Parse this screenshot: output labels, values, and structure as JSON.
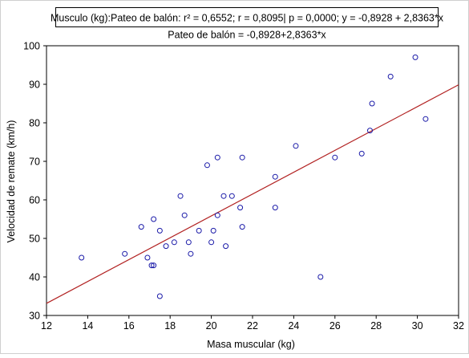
{
  "chart_data": {
    "type": "scatter",
    "title_box": "Musculo (kg):Pateo de balón:  r² = 0,6552;  r = 0,8095| p = 0,0000;  y = -0,8928 + 2,8363*x",
    "subtitle": "Pateo de balón = -0,8928+2,8363*x",
    "xlabel": "Masa muscular (kg)",
    "ylabel": "Velocidad de remate (km/h)",
    "xlim": [
      12,
      32
    ],
    "ylim": [
      30,
      100
    ],
    "xticks": [
      12,
      14,
      16,
      18,
      20,
      22,
      24,
      26,
      28,
      30,
      32
    ],
    "yticks": [
      30,
      40,
      50,
      60,
      70,
      80,
      90,
      100
    ],
    "grid": false,
    "regression": {
      "intercept": -0.8928,
      "slope": 2.8363
    },
    "colors": {
      "points": "#1a1aa8",
      "line": "#b22222",
      "axis": "#000000"
    },
    "points": [
      {
        "x": 13.7,
        "y": 45
      },
      {
        "x": 15.8,
        "y": 46
      },
      {
        "x": 16.6,
        "y": 53
      },
      {
        "x": 16.9,
        "y": 45
      },
      {
        "x": 17.1,
        "y": 43
      },
      {
        "x": 17.2,
        "y": 43
      },
      {
        "x": 17.2,
        "y": 55
      },
      {
        "x": 17.5,
        "y": 52
      },
      {
        "x": 17.5,
        "y": 35
      },
      {
        "x": 17.8,
        "y": 48
      },
      {
        "x": 18.2,
        "y": 49
      },
      {
        "x": 18.5,
        "y": 61
      },
      {
        "x": 18.7,
        "y": 56
      },
      {
        "x": 18.9,
        "y": 49
      },
      {
        "x": 19.0,
        "y": 46
      },
      {
        "x": 19.4,
        "y": 52
      },
      {
        "x": 19.8,
        "y": 69
      },
      {
        "x": 20.0,
        "y": 49
      },
      {
        "x": 20.1,
        "y": 52
      },
      {
        "x": 20.3,
        "y": 56
      },
      {
        "x": 20.3,
        "y": 71
      },
      {
        "x": 20.6,
        "y": 61
      },
      {
        "x": 20.7,
        "y": 48
      },
      {
        "x": 21.0,
        "y": 61
      },
      {
        "x": 21.4,
        "y": 58
      },
      {
        "x": 21.5,
        "y": 53
      },
      {
        "x": 21.5,
        "y": 71
      },
      {
        "x": 23.1,
        "y": 66
      },
      {
        "x": 23.1,
        "y": 58
      },
      {
        "x": 24.1,
        "y": 74
      },
      {
        "x": 25.3,
        "y": 40
      },
      {
        "x": 26.0,
        "y": 71
      },
      {
        "x": 27.3,
        "y": 72
      },
      {
        "x": 27.7,
        "y": 78
      },
      {
        "x": 27.8,
        "y": 85
      },
      {
        "x": 28.7,
        "y": 92
      },
      {
        "x": 29.9,
        "y": 97
      },
      {
        "x": 30.4,
        "y": 81
      }
    ]
  }
}
